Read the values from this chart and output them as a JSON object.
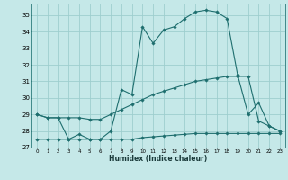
{
  "xlabel": "Humidex (Indice chaleur)",
  "background_color": "#c5e8e8",
  "grid_color": "#9ecece",
  "line_color": "#1e6e6e",
  "xlim": [
    -0.5,
    23.5
  ],
  "ylim": [
    27,
    35.7
  ],
  "yticks": [
    27,
    28,
    29,
    30,
    31,
    32,
    33,
    34,
    35
  ],
  "xticks": [
    0,
    1,
    2,
    3,
    4,
    5,
    6,
    7,
    8,
    9,
    10,
    11,
    12,
    13,
    14,
    15,
    16,
    17,
    18,
    19,
    20,
    21,
    22,
    23
  ],
  "series1_x": [
    0,
    1,
    2,
    3,
    4,
    5,
    6,
    7,
    8,
    9,
    10,
    11,
    12,
    13,
    14,
    15,
    16,
    17,
    18,
    19,
    20,
    21,
    22,
    23
  ],
  "series1_y": [
    29.0,
    28.8,
    28.8,
    27.5,
    27.8,
    27.5,
    27.5,
    28.0,
    30.5,
    30.2,
    34.3,
    33.3,
    34.1,
    34.3,
    34.8,
    35.2,
    35.3,
    35.2,
    34.8,
    31.4,
    29.0,
    29.7,
    28.3,
    28.0
  ],
  "series2_x": [
    0,
    1,
    2,
    3,
    4,
    5,
    6,
    7,
    8,
    9,
    10,
    11,
    12,
    13,
    14,
    15,
    16,
    17,
    18,
    19,
    20,
    21,
    22,
    23
  ],
  "series2_y": [
    29.0,
    28.8,
    28.8,
    28.8,
    28.8,
    28.7,
    28.7,
    29.0,
    29.3,
    29.6,
    29.9,
    30.2,
    30.4,
    30.6,
    30.8,
    31.0,
    31.1,
    31.2,
    31.3,
    31.3,
    31.3,
    28.6,
    28.3,
    28.0
  ],
  "series3_x": [
    0,
    1,
    2,
    3,
    4,
    5,
    6,
    7,
    8,
    9,
    10,
    11,
    12,
    13,
    14,
    15,
    16,
    17,
    18,
    19,
    20,
    21,
    22,
    23
  ],
  "series3_y": [
    27.5,
    27.5,
    27.5,
    27.5,
    27.5,
    27.5,
    27.5,
    27.5,
    27.5,
    27.5,
    27.6,
    27.65,
    27.7,
    27.75,
    27.8,
    27.85,
    27.85,
    27.85,
    27.85,
    27.85,
    27.85,
    27.85,
    27.85,
    27.85
  ]
}
